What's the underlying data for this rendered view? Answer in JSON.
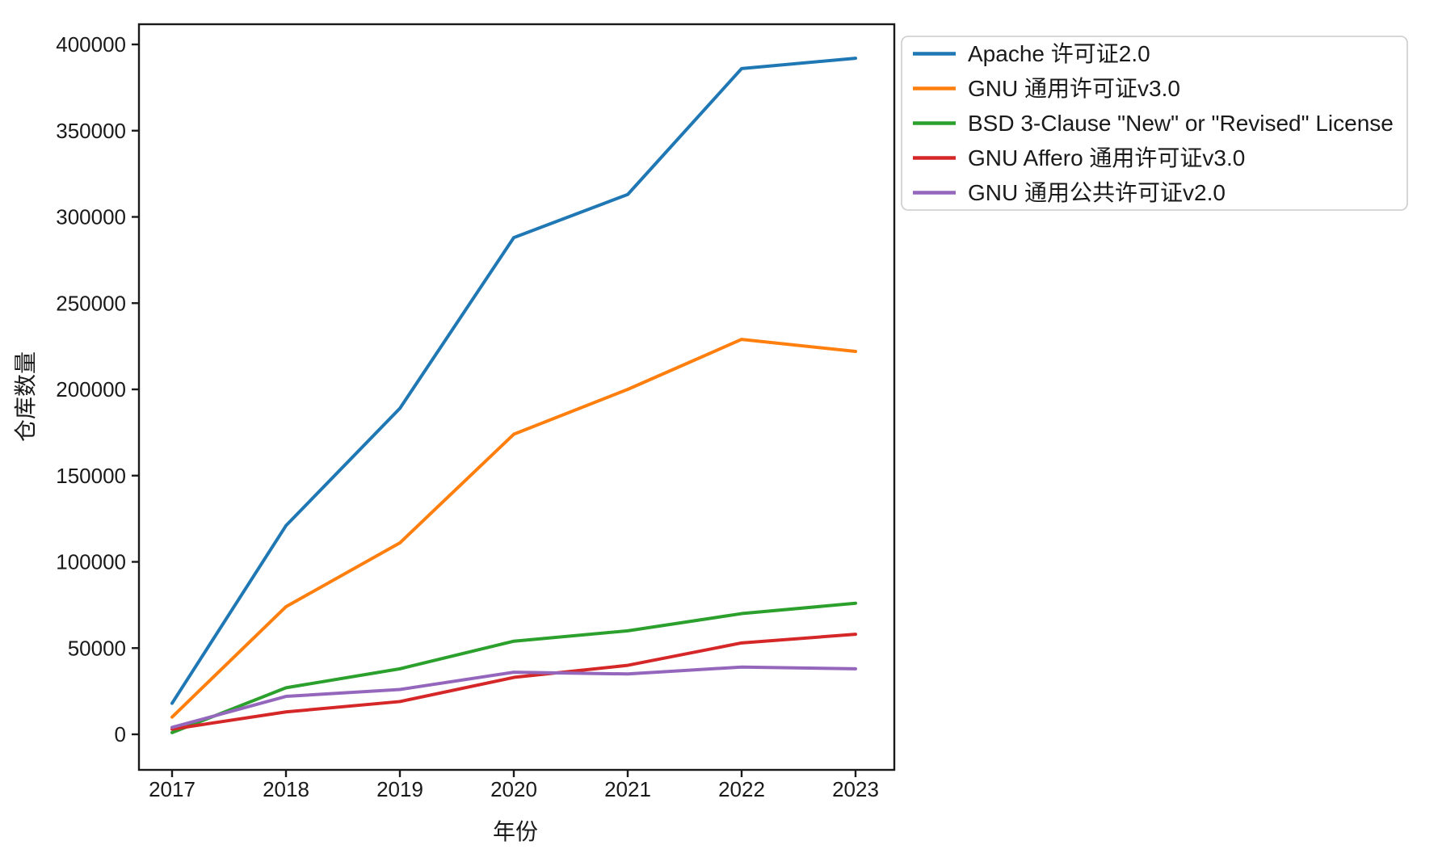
{
  "chart_data": {
    "type": "line",
    "title": "",
    "xlabel": "年份",
    "ylabel": "仓库数量",
    "x": [
      2017,
      2018,
      2019,
      2020,
      2021,
      2022,
      2023
    ],
    "xtick_labels": [
      "2017",
      "2018",
      "2019",
      "2020",
      "2021",
      "2022",
      "2023"
    ],
    "yticks": [
      0,
      50000,
      100000,
      150000,
      200000,
      250000,
      300000,
      350000,
      400000
    ],
    "ytick_labels": [
      "0",
      "50000",
      "100000",
      "150000",
      "200000",
      "250000",
      "300000",
      "350000",
      "400000"
    ],
    "ylim": [
      -20000,
      412000
    ],
    "grid": false,
    "legend_position": "outside-upper-right",
    "legend_border_color": "#cccccc",
    "axis_color": "#1a1a1a",
    "background_color": "#ffffff",
    "series": [
      {
        "name": "Apache 许可证2.0",
        "color": "#1f77b4",
        "values": [
          18000,
          121000,
          189000,
          288000,
          313000,
          386000,
          392000
        ]
      },
      {
        "name": "GNU 通用许可证v3.0",
        "color": "#ff7f0e",
        "values": [
          10000,
          74000,
          111000,
          174000,
          200000,
          229000,
          222000
        ]
      },
      {
        "name": "BSD 3-Clause \"New\" or \"Revised\" License",
        "color": "#2ca02c",
        "values": [
          1000,
          27000,
          38000,
          54000,
          60000,
          70000,
          76000
        ]
      },
      {
        "name": "GNU Affero 通用许可证v3.0",
        "color": "#d62728",
        "values": [
          3000,
          13000,
          19000,
          33000,
          40000,
          53000,
          58000
        ]
      },
      {
        "name": "GNU 通用公共许可证v2.0",
        "color": "#9467bd",
        "values": [
          4000,
          22000,
          26000,
          36000,
          35000,
          39000,
          38000
        ]
      }
    ]
  }
}
